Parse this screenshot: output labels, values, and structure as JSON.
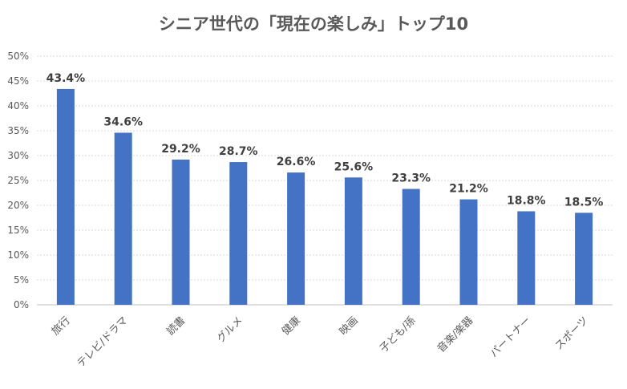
{
  "chart_data": {
    "type": "bar",
    "title": "シニア世代の「現在の楽しみ」トップ10",
    "categories": [
      "旅行",
      "テレビ/ドラマ",
      "読書",
      "グルメ",
      "健康",
      "映画",
      "子ども/孫",
      "音楽/楽器",
      "パートナー",
      "スポーツ"
    ],
    "values": [
      43.4,
      34.6,
      29.2,
      28.7,
      26.6,
      25.6,
      23.3,
      21.2,
      18.8,
      18.5
    ],
    "data_labels": [
      "43.4%",
      "34.6%",
      "29.2%",
      "28.7%",
      "26.6%",
      "25.6%",
      "23.3%",
      "21.2%",
      "18.8%",
      "18.5%"
    ],
    "ylim": [
      0,
      50
    ],
    "yticks": [
      "0%",
      "5%",
      "10%",
      "15%",
      "20%",
      "25%",
      "30%",
      "35%",
      "40%",
      "45%",
      "50%"
    ],
    "grid": true,
    "bar_color": "#4472C4",
    "xlabel": "",
    "ylabel": ""
  }
}
